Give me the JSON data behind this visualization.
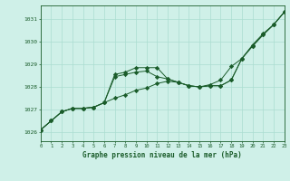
{
  "xlabel": "Graphe pression niveau de la mer (hPa)",
  "bg_color": "#cff0e8",
  "line_color": "#1a5c2a",
  "grid_color": "#aaddd0",
  "text_color": "#1a5c2a",
  "xmin": 0,
  "xmax": 23,
  "ymin": 1025.6,
  "ymax": 1031.6,
  "yticks": [
    1026,
    1027,
    1028,
    1029,
    1030,
    1031
  ],
  "xticks": [
    0,
    1,
    2,
    3,
    4,
    5,
    6,
    7,
    8,
    9,
    10,
    11,
    12,
    13,
    14,
    15,
    16,
    17,
    18,
    19,
    20,
    21,
    22,
    23
  ],
  "series": [
    [
      1026.1,
      1026.5,
      1026.9,
      1027.05,
      1027.05,
      1027.1,
      1027.3,
      1028.55,
      1028.65,
      1028.85,
      1028.85,
      1028.85,
      1028.35,
      1028.2,
      1028.05,
      1028.0,
      1028.05,
      1028.05,
      1028.3,
      1029.25,
      1029.8,
      1030.3,
      1030.75,
      1031.3
    ],
    [
      1026.1,
      1026.5,
      1026.9,
      1027.05,
      1027.05,
      1027.1,
      1027.3,
      1027.5,
      1027.65,
      1027.85,
      1027.95,
      1028.15,
      1028.25,
      1028.2,
      1028.05,
      1028.0,
      1028.05,
      1028.05,
      1028.3,
      1029.25,
      1029.8,
      1030.3,
      1030.75,
      1031.3
    ],
    [
      1026.1,
      1026.5,
      1026.9,
      1027.05,
      1027.05,
      1027.1,
      1027.3,
      1028.45,
      1028.55,
      1028.65,
      1028.7,
      1028.45,
      1028.35,
      1028.2,
      1028.05,
      1028.0,
      1028.1,
      1028.3,
      1028.9,
      1029.25,
      1029.85,
      1030.35,
      1030.75,
      1031.3
    ]
  ]
}
